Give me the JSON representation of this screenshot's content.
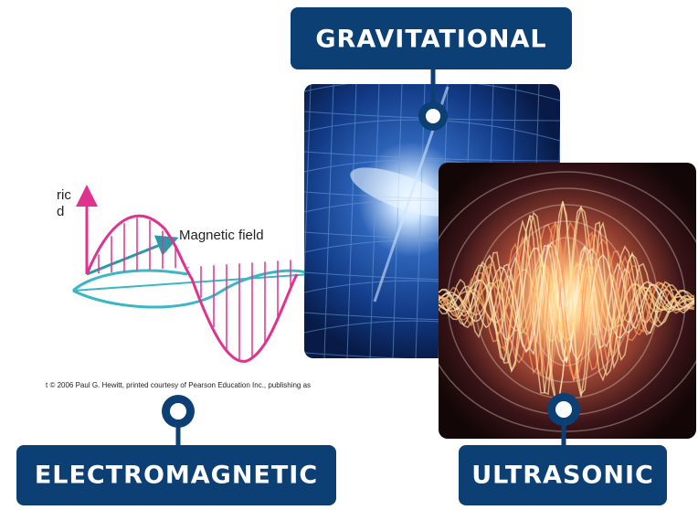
{
  "labels": {
    "gravitational": "GRAVITATIONAL",
    "electromagnetic": "ELECTROMAGNETIC",
    "ultrasonic": "ULTRASONIC"
  },
  "diagram": {
    "electric_label_lines": [
      "ric",
      "d"
    ],
    "magnetic_label": "Magnetic field",
    "credit": "t © 2006 Paul G. Hewitt, printed courtesy of Pearson Education Inc., publishing as"
  }
}
